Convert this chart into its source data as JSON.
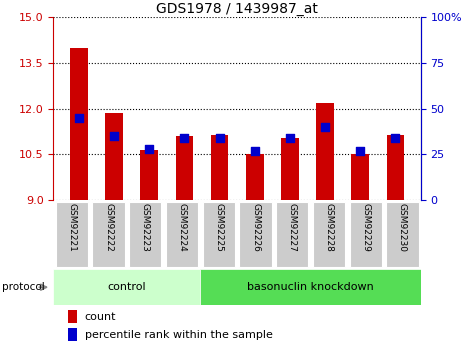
{
  "title": "GDS1978 / 1439987_at",
  "samples": [
    "GSM92221",
    "GSM92222",
    "GSM92223",
    "GSM92224",
    "GSM92225",
    "GSM92226",
    "GSM92227",
    "GSM92228",
    "GSM92229",
    "GSM92230"
  ],
  "counts": [
    14.0,
    11.85,
    10.65,
    11.1,
    11.15,
    10.5,
    11.05,
    12.2,
    10.5,
    11.15
  ],
  "percentile_ranks": [
    45,
    35,
    28,
    34,
    34,
    27,
    34,
    40,
    27,
    34
  ],
  "ylim_left": [
    9,
    15
  ],
  "ylim_right": [
    0,
    100
  ],
  "yticks_left": [
    9,
    10.5,
    12,
    13.5,
    15
  ],
  "yticks_right": [
    0,
    25,
    50,
    75,
    100
  ],
  "bar_color": "#cc0000",
  "dot_color": "#0000cc",
  "n_control": 4,
  "n_knockdown": 6,
  "control_label": "control",
  "knockdown_label": "basonuclin knockdown",
  "protocol_label": "protocol",
  "legend_count_label": "count",
  "legend_pct_label": "percentile rank within the sample",
  "control_color": "#ccffcc",
  "knockdown_color": "#55dd55",
  "tick_label_bg": "#cccccc",
  "left_axis_color": "#cc0000",
  "right_axis_color": "#0000cc",
  "dot_size": 28,
  "bar_width": 0.5
}
